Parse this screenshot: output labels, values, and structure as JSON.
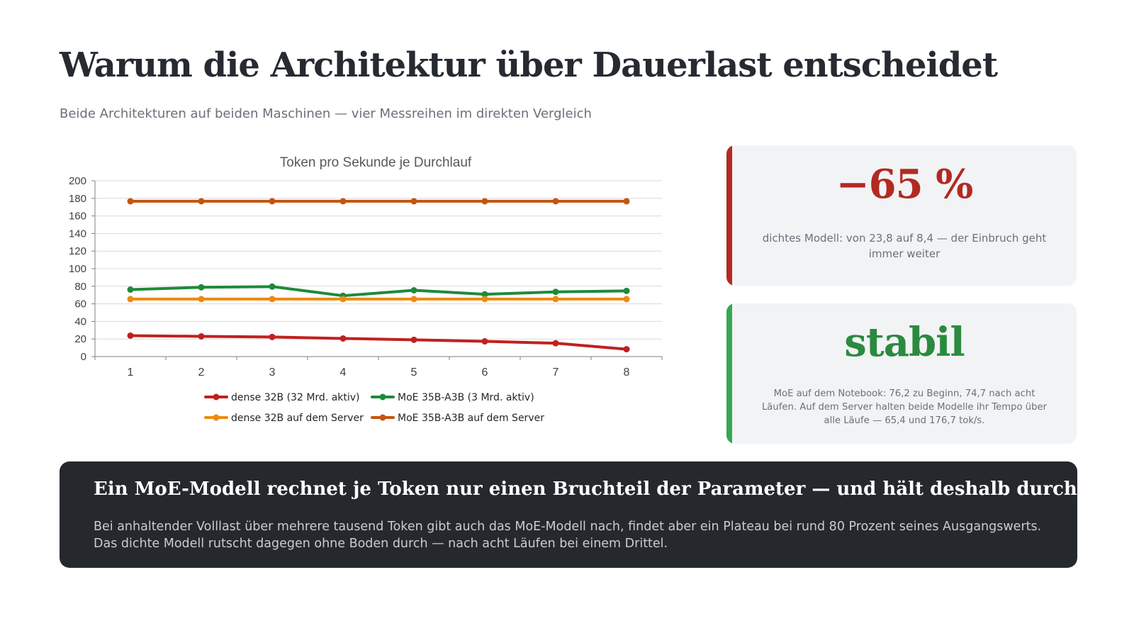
{
  "header": {
    "title": "Warum die Architektur über Dauerlast entscheidet",
    "subtitle": "Beide Architekturen auf beiden Maschinen — vier Messreihen im direkten Vergleich"
  },
  "chart_data": {
    "type": "line",
    "title": "Token pro Sekunde je Durchlauf",
    "xlabel": "",
    "ylabel": "",
    "categories": [
      "1",
      "2",
      "3",
      "4",
      "5",
      "6",
      "7",
      "8"
    ],
    "ylim": [
      0,
      200
    ],
    "yticks": [
      0,
      20,
      40,
      60,
      80,
      100,
      120,
      140,
      160,
      180,
      200
    ],
    "grid": true,
    "legend_position": "bottom",
    "series": [
      {
        "name": "dense 32B (32 Mrd. aktiv)",
        "color": "#c0211f",
        "values": [
          23.8,
          23.0,
          22.3,
          20.6,
          19.1,
          17.3,
          15.2,
          8.4
        ]
      },
      {
        "name": "MoE 35B-A3B (3 Mrd. aktiv)",
        "color": "#1e8a3a",
        "values": [
          76.2,
          78.8,
          79.6,
          69.2,
          75.4,
          70.9,
          73.6,
          74.7
        ]
      },
      {
        "name": "dense 32B auf dem Server",
        "color": "#ee8a12",
        "values": [
          65.4,
          65.4,
          65.4,
          65.4,
          65.4,
          65.4,
          65.4,
          65.4
        ]
      },
      {
        "name": "MoE 35B-A3B auf dem Server",
        "color": "#c55410",
        "values": [
          176.7,
          176.7,
          176.7,
          176.7,
          176.7,
          176.7,
          176.7,
          176.7
        ]
      }
    ]
  },
  "cards": [
    {
      "value": "−65 %",
      "text": "dichtes Modell: von 23,8 auf 8,4 — der Einbruch geht immer weiter",
      "accent": "#b22a22"
    },
    {
      "value": "stabil",
      "text": "MoE auf dem Notebook: 76,2 zu Beginn, 74,7 nach acht Läufen. Auf dem Server halten beide Modelle ihr Tempo über alle Läufe — 65,4 und 176,7 tok/s.",
      "accent": "#34a853"
    }
  ],
  "banner": {
    "title": "Ein MoE-Modell rechnet je Token nur einen Bruchteil der Parameter — und hält deshalb durch.",
    "text": "Bei anhaltender Volllast über mehrere tausend Token gibt auch das MoE-Modell nach, findet aber ein Plateau bei rund 80 Prozent seines Ausgangswerts. Das dichte Modell rutscht dagegen ohne Boden durch — nach acht Läufen bei einem Drittel."
  }
}
